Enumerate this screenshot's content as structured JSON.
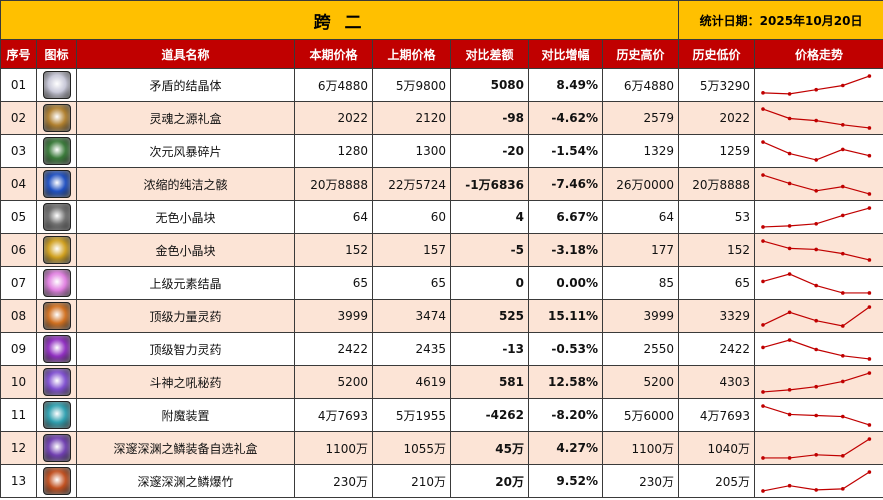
{
  "title": "跨 二",
  "date_label": "统计日期：2025年10月20日",
  "headers": [
    "序号",
    "图标",
    "道具名称",
    "本期价格",
    "上期价格",
    "对比差额",
    "对比增幅",
    "历史高价",
    "历史低价",
    "价格走势"
  ],
  "colors": {
    "title_bg": "#ffc000",
    "header_bg": "#c00000",
    "alt_row": "#fce4d6",
    "positive": "#e00000",
    "negative": "#22a030",
    "trend_line": "#c00000"
  },
  "rows": [
    {
      "idx": "01",
      "icon": "diamond-crystal-icon",
      "icon_color": "#c8c8d8",
      "name": "矛盾的结晶体",
      "cur": "6万4880",
      "prev": "5万9800",
      "diff": "5080",
      "pct": "8.49%",
      "sign": "pos",
      "high": "6万4880",
      "low": "5万3290",
      "trend": [
        0.15,
        0.1,
        0.3,
        0.5,
        0.95
      ]
    },
    {
      "idx": "02",
      "icon": "soul-box-icon",
      "icon_color": "#b08030",
      "name": "灵魂之源礼盒",
      "cur": "2022",
      "prev": "2120",
      "diff": "-98",
      "pct": "-4.62%",
      "sign": "neg",
      "high": "2579",
      "low": "2022",
      "trend": [
        0.95,
        0.5,
        0.4,
        0.2,
        0.05
      ]
    },
    {
      "idx": "03",
      "icon": "storm-shard-icon",
      "icon_color": "#3a7a3a",
      "name": "次元风暴碎片",
      "cur": "1280",
      "prev": "1300",
      "diff": "-20",
      "pct": "-1.54%",
      "sign": "neg",
      "high": "1329",
      "low": "1259",
      "trend": [
        0.95,
        0.4,
        0.1,
        0.6,
        0.3
      ]
    },
    {
      "idx": "04",
      "icon": "pure-bone-icon",
      "icon_color": "#2050c0",
      "name": "浓缩的纯洁之骸",
      "cur": "20万8888",
      "prev": "22万5724",
      "diff": "-1万6836",
      "pct": "-7.46%",
      "sign": "neg",
      "high": "26万0000",
      "low": "20万8888",
      "trend": [
        0.95,
        0.55,
        0.2,
        0.4,
        0.05
      ]
    },
    {
      "idx": "05",
      "icon": "colorless-cube-icon",
      "icon_color": "#707070",
      "name": "无色小晶块",
      "cur": "64",
      "prev": "60",
      "diff": "4",
      "pct": "6.67%",
      "sign": "pos",
      "high": "64",
      "low": "53",
      "trend": [
        0.05,
        0.1,
        0.2,
        0.6,
        0.95
      ]
    },
    {
      "idx": "06",
      "icon": "gold-cube-icon",
      "icon_color": "#d0a020",
      "name": "金色小晶块",
      "cur": "152",
      "prev": "157",
      "diff": "-5",
      "pct": "-3.18%",
      "sign": "neg",
      "high": "177",
      "low": "152",
      "trend": [
        0.95,
        0.6,
        0.55,
        0.35,
        0.05
      ]
    },
    {
      "idx": "07",
      "icon": "element-crystal-icon",
      "icon_color": "#e080e0",
      "name": "上级元素结晶",
      "cur": "65",
      "prev": "65",
      "diff": "0",
      "pct": "0.00%",
      "sign": "pos",
      "high": "85",
      "low": "65",
      "trend": [
        0.6,
        0.95,
        0.4,
        0.05,
        0.05
      ]
    },
    {
      "idx": "08",
      "icon": "power-potion-icon",
      "icon_color": "#d07020",
      "name": "顶级力量灵药",
      "cur": "3999",
      "prev": "3474",
      "diff": "525",
      "pct": "15.11%",
      "sign": "pos",
      "high": "3999",
      "low": "3329",
      "trend": [
        0.1,
        0.7,
        0.3,
        0.05,
        0.95
      ]
    },
    {
      "idx": "09",
      "icon": "intellect-potion-icon",
      "icon_color": "#9030c0",
      "name": "顶级智力灵药",
      "cur": "2422",
      "prev": "2435",
      "diff": "-13",
      "pct": "-0.53%",
      "sign": "neg",
      "high": "2550",
      "low": "2422",
      "trend": [
        0.6,
        0.95,
        0.5,
        0.2,
        0.05
      ]
    },
    {
      "idx": "10",
      "icon": "roar-potion-icon",
      "icon_color": "#8050d0",
      "name": "斗神之吼秘药",
      "cur": "5200",
      "prev": "4619",
      "diff": "581",
      "pct": "12.58%",
      "sign": "pos",
      "high": "5200",
      "low": "4303",
      "trend": [
        0.05,
        0.15,
        0.3,
        0.55,
        0.95
      ]
    },
    {
      "idx": "11",
      "icon": "enchant-device-icon",
      "icon_color": "#30a0b0",
      "name": "附魔装置",
      "cur": "4万7693",
      "prev": "5万1955",
      "diff": "-4262",
      "pct": "-8.20%",
      "sign": "neg",
      "high": "5万6000",
      "low": "4万7693",
      "trend": [
        0.95,
        0.55,
        0.5,
        0.45,
        0.05
      ]
    },
    {
      "idx": "12",
      "icon": "abyss-gear-box-icon",
      "icon_color": "#7040b0",
      "name": "深邃深渊之鳞装备自选礼盒",
      "cur": "1100万",
      "prev": "1055万",
      "diff": "45万",
      "pct": "4.27%",
      "sign": "pos",
      "high": "1100万",
      "low": "1040万",
      "trend": [
        0.05,
        0.05,
        0.2,
        0.15,
        0.95
      ]
    },
    {
      "idx": "13",
      "icon": "abyss-firecracker-icon",
      "icon_color": "#c05020",
      "name": "深邃深渊之鳞爆竹",
      "cur": "230万",
      "prev": "210万",
      "diff": "20万",
      "pct": "9.52%",
      "sign": "pos",
      "high": "230万",
      "low": "205万",
      "trend": [
        0.05,
        0.3,
        0.1,
        0.15,
        0.95
      ]
    }
  ]
}
